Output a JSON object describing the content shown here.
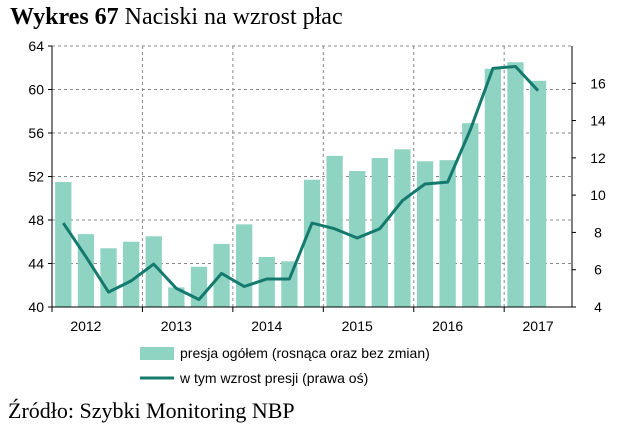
{
  "title": {
    "bold": "Wykres 67",
    "rest": "Naciski na wzrost płac"
  },
  "source": "Źródło: Szybki Monitoring NBP",
  "colors": {
    "bars": "#8fd3c3",
    "line": "#157a6e",
    "grid": "#888888",
    "axis": "#000000"
  },
  "chart_data": {
    "type": "bar",
    "x_labels": [
      "2012",
      "2013",
      "2014",
      "2015",
      "2016",
      "2017"
    ],
    "categories": [
      "2012Q1",
      "2012Q2",
      "2012Q3",
      "2012Q4",
      "2013Q1",
      "2013Q2",
      "2013Q3",
      "2013Q4",
      "2014Q1",
      "2014Q2",
      "2014Q3",
      "2014Q4",
      "2015Q1",
      "2015Q2",
      "2015Q3",
      "2015Q4",
      "2016Q1",
      "2016Q2",
      "2016Q3",
      "2016Q4",
      "2017Q1",
      "2017Q2",
      "2017Q3"
    ],
    "series": [
      {
        "name": "presja ogółem (rosnąca oraz bez zmian)",
        "type": "bar",
        "axis": "left",
        "values": [
          51.5,
          46.7,
          45.4,
          46.0,
          46.5,
          41.8,
          43.7,
          45.8,
          47.6,
          44.6,
          44.2,
          51.7,
          53.9,
          52.5,
          53.7,
          54.5,
          53.4,
          53.5,
          56.9,
          61.9,
          62.5,
          60.8,
          null
        ]
      },
      {
        "name": "w tym wzrost presji (prawa oś)",
        "type": "line",
        "axis": "right",
        "values": [
          8.5,
          6.7,
          4.8,
          5.4,
          6.3,
          5.0,
          4.4,
          5.8,
          5.1,
          5.5,
          5.5,
          8.5,
          8.2,
          7.7,
          8.2,
          9.7,
          10.6,
          10.7,
          13.5,
          16.8,
          16.9,
          15.6,
          null
        ]
      }
    ],
    "y_left": {
      "min": 40,
      "max": 64,
      "ticks": [
        40,
        44,
        48,
        52,
        56,
        60,
        64
      ]
    },
    "y_right": {
      "min": 4,
      "max": 18,
      "ticks": [
        4,
        6,
        8,
        10,
        12,
        14,
        16
      ]
    },
    "grid": true,
    "legend_position": "bottom"
  }
}
